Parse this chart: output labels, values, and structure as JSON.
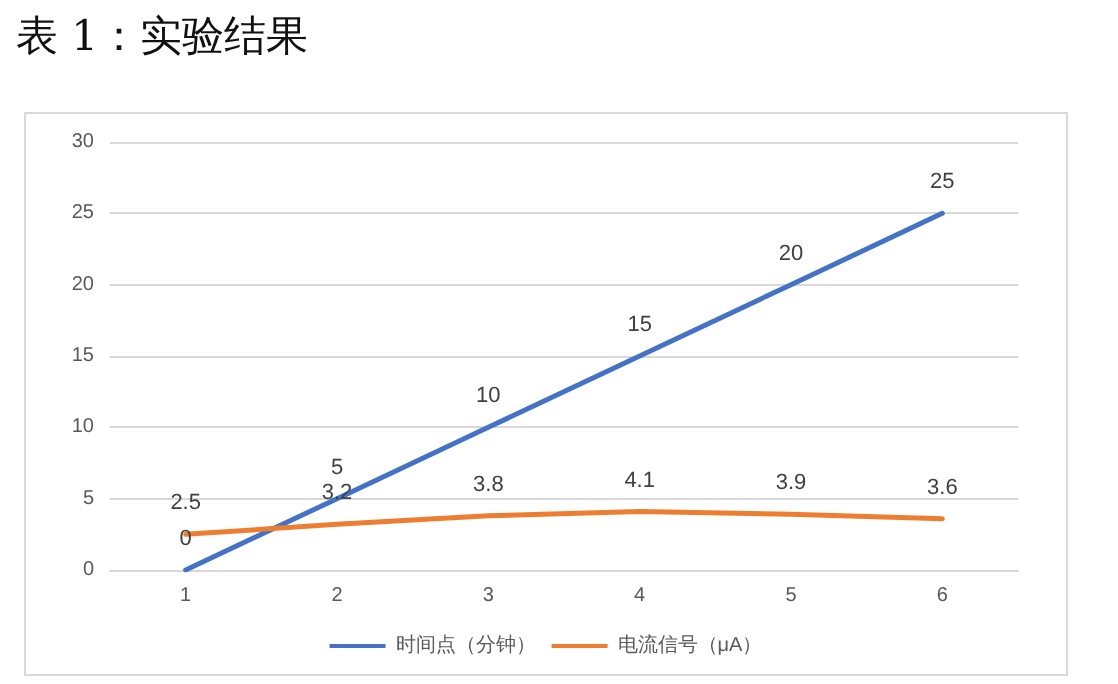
{
  "chart_data": {
    "type": "line",
    "title": "表 1：实验结果",
    "categories": [
      "1",
      "2",
      "3",
      "4",
      "5",
      "6"
    ],
    "series": [
      {
        "name": "时间点（分钟）",
        "color": "#4472c4",
        "values": [
          0,
          5,
          10,
          15,
          20,
          25
        ]
      },
      {
        "name": "电流信号（μA）",
        "color": "#ed7d31",
        "values": [
          2.5,
          3.2,
          3.8,
          4.1,
          3.9,
          3.6
        ]
      }
    ],
    "ylim": [
      0,
      30
    ],
    "yticks": [
      0,
      5,
      10,
      15,
      20,
      25,
      30
    ],
    "grid": "y",
    "legend": "bottom",
    "marker": "none",
    "line_style": "solid",
    "data_labels": true
  }
}
